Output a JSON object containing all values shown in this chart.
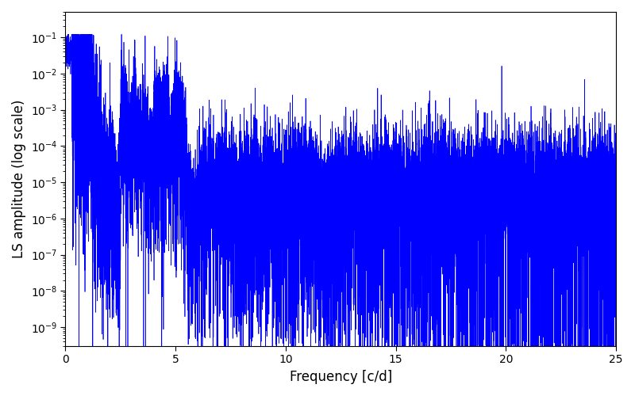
{
  "title": "",
  "xlabel": "Frequency [c/d]",
  "ylabel": "LS amplitude (log scale)",
  "xlim": [
    0,
    25
  ],
  "ylim_log": [
    3e-10,
    0.5
  ],
  "xticks": [
    0,
    5,
    10,
    15,
    20,
    25
  ],
  "line_color": "#0000ff",
  "line_width": 0.5,
  "background_color": "#ffffff",
  "figsize": [
    8.0,
    5.0
  ],
  "dpi": 100,
  "seed": 42,
  "n_points": 20000,
  "freq_max": 25.0
}
